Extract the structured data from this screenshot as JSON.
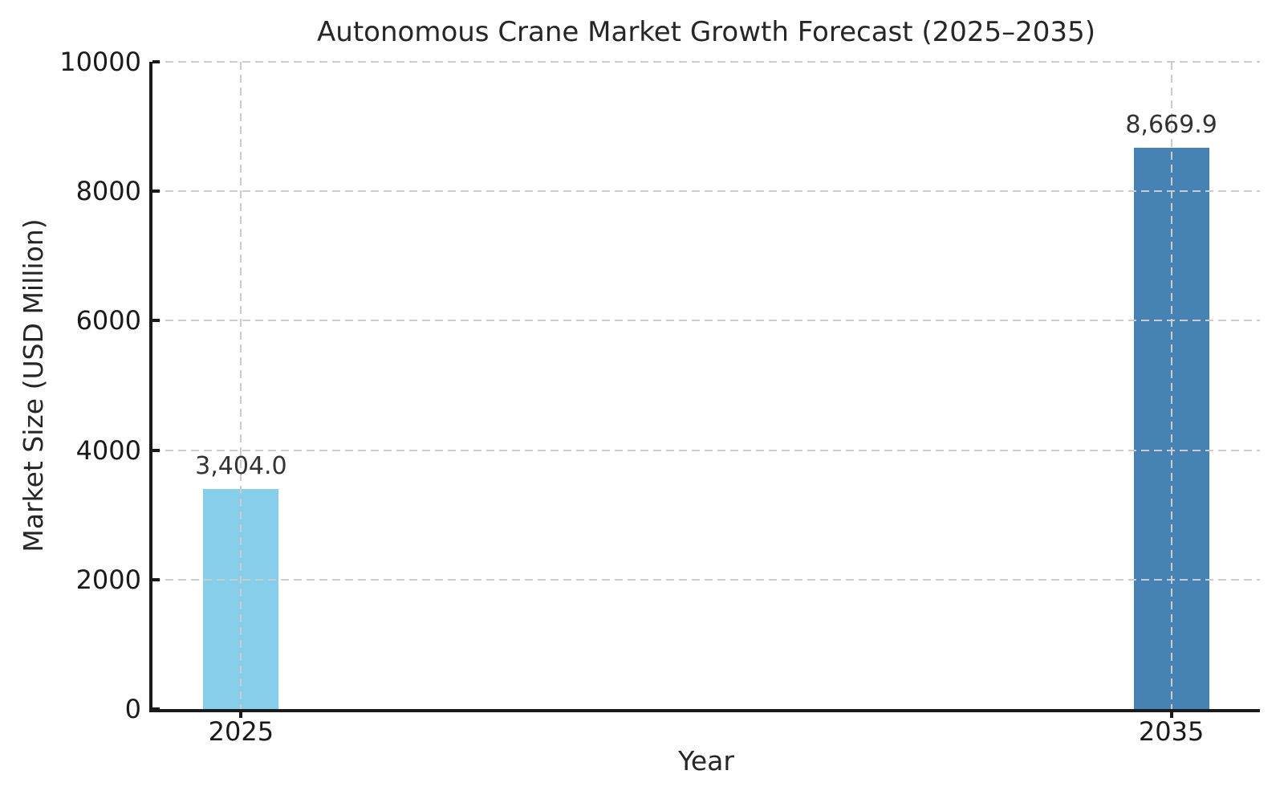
{
  "chart_data": {
    "type": "bar",
    "title": "Autonomous Crane Market Growth Forecast (2025–2035)",
    "xlabel": "Year",
    "ylabel": "Market Size (USD Million)",
    "categories": [
      "2025",
      "2035"
    ],
    "values": [
      3404.0,
      8669.9
    ],
    "value_labels": [
      "3,404.0",
      "8,669.9"
    ],
    "bar_colors": [
      "#87CEEB",
      "#4682B4"
    ],
    "ylim": [
      0,
      10000
    ],
    "yticks": [
      0,
      2000,
      4000,
      6000,
      8000,
      10000
    ],
    "ytick_labels": [
      "0",
      "2000",
      "4000",
      "6000",
      "8000",
      "10000"
    ],
    "grid": true,
    "grid_style": "dashed",
    "grid_color": "#cccccc",
    "axis_color": "#1a1a1a",
    "text_color": "#262626",
    "background": "#ffffff",
    "legend": "none"
  }
}
